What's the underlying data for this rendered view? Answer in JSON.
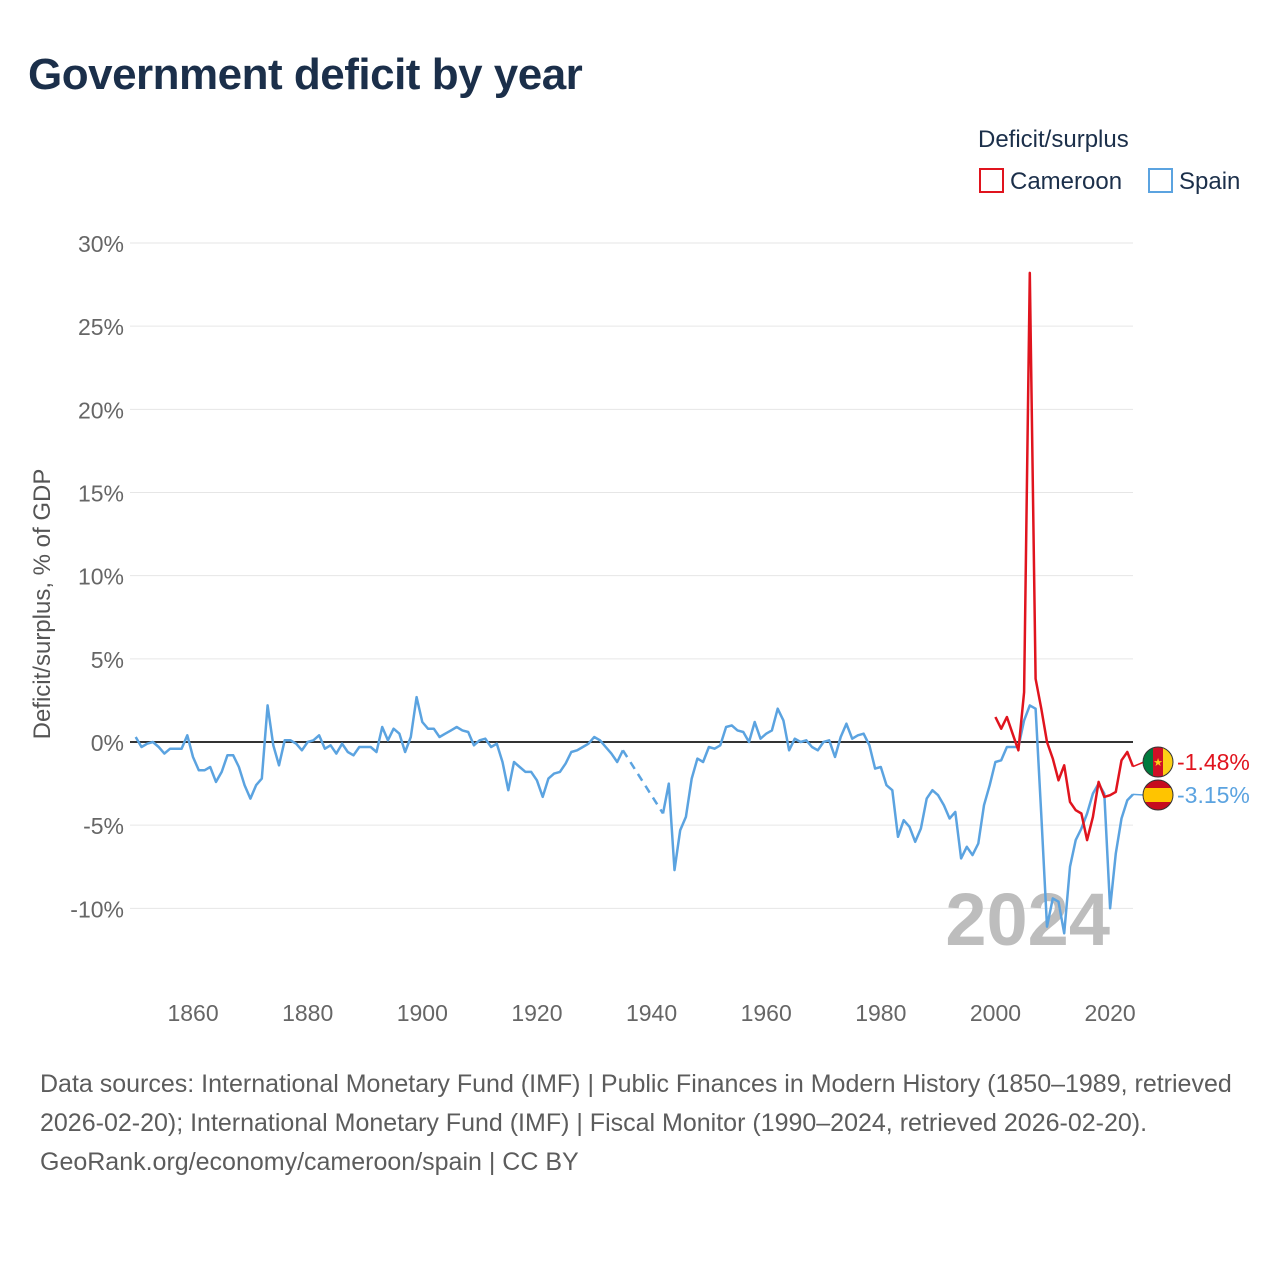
{
  "title": "Government deficit by year",
  "legend": {
    "title": "Deficit/surplus",
    "items": [
      {
        "label": "Cameroon",
        "color": "#e0141e"
      },
      {
        "label": "Spain",
        "color": "#5ba3e0"
      }
    ]
  },
  "year_watermark": "2024",
  "footer": {
    "sources": "Data sources: International Monetary Fund (IMF) | Public Finances in Modern History (1850–1989, retrieved 2026-02-20); International Monetary Fund (IMF) | Fiscal Monitor (1990–2024, retrieved 2026-02-20).",
    "link": "GeoRank.org/economy/cameroon/spain | CC BY"
  },
  "chart_data": {
    "type": "line",
    "title": "Government deficit by year",
    "ylabel": "Deficit/surplus, % of GDP",
    "xlabel": "",
    "xlim": [
      1849,
      2024
    ],
    "ylim": [
      -13,
      30
    ],
    "yticks": [
      30,
      25,
      20,
      15,
      10,
      5,
      0,
      -5,
      -10
    ],
    "ytick_labels": [
      "30%",
      "25%",
      "20%",
      "15%",
      "10%",
      "5%",
      "0%",
      "-5%",
      "-10%"
    ],
    "xticks": [
      1860,
      1880,
      1900,
      1920,
      1940,
      1960,
      1980,
      2000,
      2020
    ],
    "xtick_labels": [
      "1860",
      "1880",
      "1900",
      "1920",
      "1940",
      "1960",
      "1980",
      "2000",
      "2020"
    ],
    "series": [
      {
        "name": "Cameroon",
        "color": "#e0141e",
        "end_label": "-1.48%",
        "x": [
          2000,
          2001,
          2002,
          2003,
          2004,
          2005,
          2006,
          2007,
          2008,
          2009,
          2010,
          2011,
          2012,
          2013,
          2014,
          2015,
          2016,
          2017,
          2018,
          2019,
          2020,
          2021,
          2022,
          2023,
          2024
        ],
        "y": [
          1.5,
          0.8,
          1.5,
          0.5,
          -0.5,
          3.0,
          28.2,
          3.8,
          2.0,
          0.0,
          -1.0,
          -2.3,
          -1.4,
          -3.6,
          -4.1,
          -4.3,
          -5.9,
          -4.5,
          -2.4,
          -3.3,
          -3.2,
          -3.0,
          -1.1,
          -0.6,
          -1.48
        ]
      },
      {
        "name": "Spain",
        "color": "#5ba3e0",
        "end_label": "-3.15%",
        "gap_dashed": [
          1935,
          1942
        ],
        "x": [
          1850,
          1851,
          1852,
          1853,
          1854,
          1855,
          1856,
          1857,
          1858,
          1859,
          1860,
          1861,
          1862,
          1863,
          1864,
          1865,
          1866,
          1867,
          1868,
          1869,
          1870,
          1871,
          1872,
          1873,
          1874,
          1875,
          1876,
          1877,
          1878,
          1879,
          1880,
          1881,
          1882,
          1883,
          1884,
          1885,
          1886,
          1887,
          1888,
          1889,
          1890,
          1891,
          1892,
          1893,
          1894,
          1895,
          1896,
          1897,
          1898,
          1899,
          1900,
          1901,
          1902,
          1903,
          1904,
          1905,
          1906,
          1907,
          1908,
          1909,
          1910,
          1911,
          1912,
          1913,
          1914,
          1915,
          1916,
          1917,
          1918,
          1919,
          1920,
          1921,
          1922,
          1923,
          1924,
          1925,
          1926,
          1927,
          1928,
          1929,
          1930,
          1931,
          1932,
          1933,
          1934,
          1935,
          1942,
          1943,
          1944,
          1945,
          1946,
          1947,
          1948,
          1949,
          1950,
          1951,
          1952,
          1953,
          1954,
          1955,
          1956,
          1957,
          1958,
          1959,
          1960,
          1961,
          1962,
          1963,
          1964,
          1965,
          1966,
          1967,
          1968,
          1969,
          1970,
          1971,
          1972,
          1973,
          1974,
          1975,
          1976,
          1977,
          1978,
          1979,
          1980,
          1981,
          1982,
          1983,
          1984,
          1985,
          1986,
          1987,
          1988,
          1989,
          1990,
          1991,
          1992,
          1993,
          1994,
          1995,
          1996,
          1997,
          1998,
          1999,
          2000,
          2001,
          2002,
          2003,
          2004,
          2005,
          2006,
          2007,
          2008,
          2009,
          2010,
          2011,
          2012,
          2013,
          2014,
          2015,
          2016,
          2017,
          2018,
          2019,
          2020,
          2021,
          2022,
          2023,
          2024
        ],
        "y": [
          0.3,
          -0.3,
          -0.1,
          0.0,
          -0.3,
          -0.7,
          -0.4,
          -0.4,
          -0.4,
          0.4,
          -0.9,
          -1.7,
          -1.7,
          -1.5,
          -2.4,
          -1.8,
          -0.8,
          -0.8,
          -1.5,
          -2.6,
          -3.4,
          -2.6,
          -2.2,
          2.2,
          -0.2,
          -1.4,
          0.1,
          0.1,
          -0.1,
          -0.5,
          0.0,
          0.1,
          0.4,
          -0.4,
          -0.2,
          -0.7,
          -0.1,
          -0.6,
          -0.8,
          -0.3,
          -0.3,
          -0.3,
          -0.6,
          0.9,
          0.1,
          0.8,
          0.5,
          -0.6,
          0.3,
          2.7,
          1.2,
          0.8,
          0.8,
          0.3,
          0.5,
          0.7,
          0.9,
          0.7,
          0.6,
          -0.2,
          0.1,
          0.2,
          -0.3,
          -0.1,
          -1.2,
          -2.9,
          -1.2,
          -1.5,
          -1.8,
          -1.8,
          -2.3,
          -3.3,
          -2.2,
          -1.9,
          -1.8,
          -1.3,
          -0.6,
          -0.5,
          -0.3,
          -0.1,
          0.3,
          0.1,
          -0.3,
          -0.7,
          -1.2,
          -0.5,
          -4.3,
          -2.5,
          -7.7,
          -5.3,
          -4.5,
          -2.2,
          -1.0,
          -1.2,
          -0.3,
          -0.4,
          -0.2,
          0.9,
          1.0,
          0.7,
          0.6,
          0.0,
          1.2,
          0.2,
          0.5,
          0.7,
          2.0,
          1.3,
          -0.5,
          0.2,
          0.0,
          0.1,
          -0.3,
          -0.5,
          0.0,
          0.1,
          -0.9,
          0.3,
          1.1,
          0.2,
          0.4,
          0.5,
          -0.2,
          -1.6,
          -1.5,
          -2.6,
          -2.9,
          -5.7,
          -4.7,
          -5.1,
          -6.0,
          -5.2,
          -3.4,
          -2.9,
          -3.2,
          -3.8,
          -4.6,
          -4.2,
          -7.0,
          -6.3,
          -6.8,
          -6.1,
          -3.8,
          -2.6,
          -1.2,
          -1.1,
          -0.3,
          -0.3,
          -0.3,
          1.3,
          2.2,
          2.0,
          -4.4,
          -11.1,
          -9.4,
          -9.6,
          -11.5,
          -7.5,
          -5.9,
          -5.2,
          -4.3,
          -3.1,
          -2.5,
          -3.1,
          -10.0,
          -6.7,
          -4.6,
          -3.5,
          -3.15
        ]
      }
    ]
  }
}
